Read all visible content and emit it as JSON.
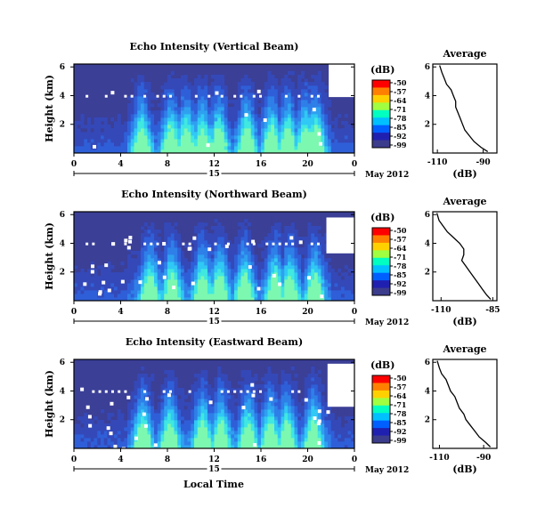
{
  "figure": {
    "x_title": "Local Time"
  },
  "chart_data": [
    {
      "type": "heatmap",
      "title": "Echo Intensity (Vertical Beam)",
      "ylabel": "Height (km)",
      "x_ticks": [
        "0",
        "4",
        "8",
        "12",
        "16",
        "20",
        "0"
      ],
      "y_ticks": [
        "6",
        "4",
        "2"
      ],
      "date_mark": "15",
      "date_label": "May 2012",
      "colorbar": {
        "unit": "(dB)",
        "ticks": [
          "-50",
          "-57",
          "-64",
          "-71",
          "-78",
          "-85",
          "-92",
          "-99"
        ],
        "colors": [
          "#ff0000",
          "#ff8000",
          "#ffd000",
          "#a0ff40",
          "#00ffc0",
          "#00c0ff",
          "#0060ff",
          "#2020b0",
          "#3c3c8c"
        ]
      },
      "xlim": [
        0,
        24
      ],
      "ylim": [
        0,
        6.2
      ],
      "bg": "#3b3f96",
      "intense_times": [
        5.8,
        8.3,
        9.6,
        11.0,
        12.4,
        14.8,
        16.9,
        18.3,
        19.8,
        20.7
      ],
      "white_patch": {
        "x0": 21.8,
        "x1": 24,
        "y0": 3.9,
        "y1": 6.2
      },
      "noise_level": 0.02,
      "profile": {
        "title": "Average",
        "xlabel": "(dB)",
        "x_ticks": [
          "-110",
          "-90"
        ],
        "y_ticks": [
          "6",
          "4",
          "2"
        ],
        "xlim": [
          -112,
          -84
        ],
        "ylim": [
          0,
          6.2
        ],
        "y": [
          6.1,
          5.6,
          5.2,
          4.8,
          4.4,
          4.0,
          3.6,
          3.2,
          2.8,
          2.4,
          2.0,
          1.6,
          1.2,
          0.8,
          0.4,
          0.1
        ],
        "x": [
          -109,
          -108,
          -107,
          -106,
          -104,
          -103,
          -102,
          -102,
          -101,
          -100,
          -99,
          -98,
          -96,
          -94,
          -91,
          -88
        ]
      }
    },
    {
      "type": "heatmap",
      "title": "Echo Intensity (Northward Beam)",
      "ylabel": "Height (km)",
      "x_ticks": [
        "0",
        "4",
        "8",
        "12",
        "16",
        "20",
        "0"
      ],
      "y_ticks": [
        "6",
        "4",
        "2"
      ],
      "date_mark": "15",
      "date_label": "May 2012",
      "colorbar": {
        "unit": "(dB)",
        "ticks": [
          "-50",
          "-57",
          "-64",
          "-71",
          "-78",
          "-85",
          "-92",
          "-99"
        ],
        "colors": [
          "#ff0000",
          "#ff8000",
          "#ffd000",
          "#a0ff40",
          "#00ffc0",
          "#00c0ff",
          "#0060ff",
          "#2020b0",
          "#3c3c8c"
        ]
      },
      "xlim": [
        0,
        24
      ],
      "ylim": [
        0,
        6.2
      ],
      "bg": "#3b3f96",
      "intense_times": [
        6.5,
        8.4,
        11.0,
        12.5,
        14.6,
        17.2,
        18.5,
        20.6
      ],
      "white_patch": {
        "x0": 21.6,
        "x1": 24,
        "y0": 3.3,
        "y1": 5.8
      },
      "noise_level": 0.08,
      "profile": {
        "title": "Average",
        "xlabel": "(dB)",
        "x_ticks": [
          "-110",
          "-85"
        ],
        "y_ticks": [
          "6",
          "4",
          "2"
        ],
        "xlim": [
          -114,
          -83
        ],
        "ylim": [
          0,
          6.2
        ],
        "y": [
          6.1,
          5.6,
          5.2,
          4.8,
          4.4,
          4.0,
          3.6,
          3.2,
          2.8,
          2.4,
          2.0,
          1.6,
          1.2,
          0.8,
          0.4,
          0.1
        ],
        "x": [
          -112,
          -111,
          -109,
          -107,
          -104,
          -101,
          -99,
          -99,
          -100,
          -98,
          -96,
          -94,
          -92,
          -90,
          -88,
          -86
        ]
      }
    },
    {
      "type": "heatmap",
      "title": "Echo Intensity (Eastward Beam)",
      "ylabel": "Height (km)",
      "x_ticks": [
        "0",
        "4",
        "8",
        "12",
        "16",
        "20",
        "0"
      ],
      "y_ticks": [
        "6",
        "4",
        "2"
      ],
      "date_mark": "15",
      "date_label": "May 2012",
      "colorbar": {
        "unit": "(dB)",
        "ticks": [
          "-50",
          "-57",
          "-64",
          "-71",
          "-78",
          "-85",
          "-92",
          "-99"
        ],
        "colors": [
          "#ff0000",
          "#ff8000",
          "#ffd000",
          "#a0ff40",
          "#00ffc0",
          "#00c0ff",
          "#0060ff",
          "#2020b0",
          "#3c3c8c"
        ]
      },
      "xlim": [
        0,
        24
      ],
      "ylim": [
        0,
        6.2
      ],
      "bg": "#3b3f96",
      "intense_times": [
        5.9,
        8.2,
        11.0,
        12.6,
        14.9,
        16.8,
        18.2,
        20.5
      ],
      "white_patch": {
        "x0": 21.7,
        "x1": 24,
        "y0": 2.9,
        "y1": 5.9
      },
      "noise_level": 0.07,
      "profile": {
        "title": "Average",
        "xlabel": "(dB)",
        "x_ticks": [
          "-110",
          "-90"
        ],
        "y_ticks": [
          "6",
          "4",
          "2"
        ],
        "xlim": [
          -113,
          -84
        ],
        "ylim": [
          0,
          6.2
        ],
        "y": [
          6.1,
          5.6,
          5.2,
          4.8,
          4.4,
          4.0,
          3.6,
          3.2,
          2.8,
          2.4,
          2.0,
          1.6,
          1.2,
          0.8,
          0.4,
          0.1
        ],
        "x": [
          -111,
          -110,
          -109,
          -107,
          -106,
          -105,
          -103,
          -102,
          -101,
          -99,
          -98,
          -96,
          -94,
          -92,
          -89,
          -87
        ]
      }
    }
  ]
}
